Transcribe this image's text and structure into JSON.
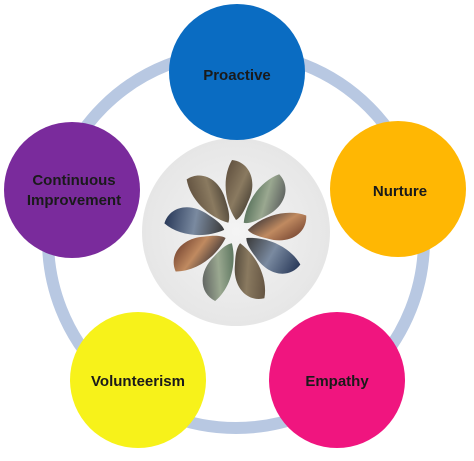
{
  "diagram": {
    "nodes": [
      {
        "id": "proactive",
        "label_lines": [
          "Proactive"
        ],
        "color": "#0a6cc2",
        "text_color": "#1a1a1a"
      },
      {
        "id": "nurture",
        "label_lines": [
          "Nurture"
        ],
        "color": "#ffb703",
        "text_color": "#1a1a1a"
      },
      {
        "id": "empathy",
        "label_lines": [
          "Empathy"
        ],
        "color": "#f0157f",
        "text_color": "#1a1a1a"
      },
      {
        "id": "volunteerism",
        "label_lines": [
          "Volunteerism"
        ],
        "color": "#f7f21a",
        "text_color": "#1a1a1a"
      },
      {
        "id": "continuous-improvement",
        "label_lines": [
          "Continuous",
          "Improvement"
        ],
        "color": "#7a2b9c",
        "text_color": "#1a1a1a"
      }
    ],
    "ring_color": "#b8c8e2",
    "center_emblem": "photo-petal-collage"
  }
}
